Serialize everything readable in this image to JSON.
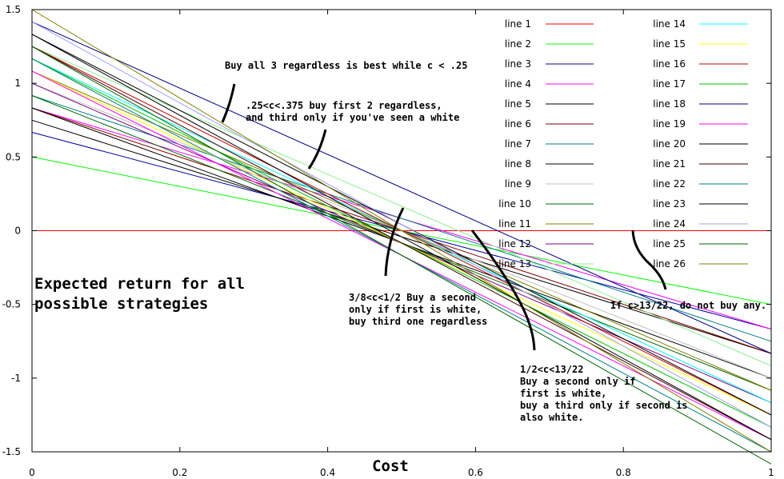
{
  "chart_data": {
    "type": "line",
    "title": "",
    "xlabel": "Cost",
    "ylabel": "",
    "xlim": [
      0,
      1
    ],
    "ylim": [
      -1.5,
      1.5
    ],
    "grid": false,
    "legend_placement": "top-right",
    "x_ticks": [
      "0",
      "0.2",
      "0.4",
      "0.6",
      "0.8",
      "1"
    ],
    "y_ticks": [
      "1.5",
      "1",
      "0.5",
      "0",
      "-0.5",
      "-1",
      "-1.5"
    ],
    "series": [
      {
        "name": "line 1",
        "color": "#ff0000",
        "x": [
          0,
          1
        ],
        "y": [
          0,
          0
        ]
      },
      {
        "name": "line 2",
        "color": "#00ff00",
        "x": [
          0,
          1
        ],
        "y": [
          0.5,
          -0.5
        ]
      },
      {
        "name": "line 3",
        "color": "#0000a0",
        "x": [
          0,
          1
        ],
        "y": [
          0.667,
          -0.667
        ]
      },
      {
        "name": "line 4",
        "color": "#ff00ff",
        "x": [
          0,
          1
        ],
        "y": [
          0.833,
          -0.667
        ]
      },
      {
        "name": "line 5",
        "color": "#000000",
        "x": [
          0,
          1
        ],
        "y": [
          0.75,
          -0.833
        ]
      },
      {
        "name": "line 6",
        "color": "#800000",
        "x": [
          0,
          1
        ],
        "y": [
          0.833,
          -0.833
        ]
      },
      {
        "name": "line 7",
        "color": "#008080",
        "x": [
          0,
          1
        ],
        "y": [
          0.917,
          -0.75
        ]
      },
      {
        "name": "line 8",
        "color": "#000000",
        "x": [
          0,
          1
        ],
        "y": [
          0.833,
          -1.0
        ]
      },
      {
        "name": "line 9",
        "color": "#c0c0c0",
        "x": [
          0,
          1
        ],
        "y": [
          1.0,
          -1.0
        ]
      },
      {
        "name": "line 10",
        "color": "#006400",
        "x": [
          0,
          1
        ],
        "y": [
          0.917,
          -1.083
        ]
      },
      {
        "name": "line 11",
        "color": "#808000",
        "x": [
          0,
          1
        ],
        "y": [
          1.083,
          -1.083
        ]
      },
      {
        "name": "line 12",
        "color": "#800080",
        "x": [
          0,
          1
        ],
        "y": [
          1.0,
          -1.167
        ]
      },
      {
        "name": "line 13",
        "color": "#90ee90",
        "x": [
          0,
          1
        ],
        "y": [
          1.25,
          -0.917
        ]
      },
      {
        "name": "line 14",
        "color": "#00ffff",
        "x": [
          0,
          1
        ],
        "y": [
          1.167,
          -1.167
        ]
      },
      {
        "name": "line 15",
        "color": "#ffff00",
        "x": [
          0,
          1
        ],
        "y": [
          1.083,
          -1.25
        ]
      },
      {
        "name": "line 16",
        "color": "#c00000",
        "x": [
          0,
          1
        ],
        "y": [
          1.25,
          -1.25
        ]
      },
      {
        "name": "line 17",
        "color": "#00c000",
        "x": [
          0,
          1
        ],
        "y": [
          1.167,
          -1.333
        ]
      },
      {
        "name": "line 18",
        "color": "#000080",
        "x": [
          0,
          1
        ],
        "y": [
          1.417,
          -0.833
        ]
      },
      {
        "name": "line 19",
        "color": "#ff00ff",
        "x": [
          0,
          1
        ],
        "y": [
          1.083,
          -1.417
        ]
      },
      {
        "name": "line 20",
        "color": "#000000",
        "x": [
          0,
          1
        ],
        "y": [
          1.333,
          -1.25
        ]
      },
      {
        "name": "line 21",
        "color": "#400000",
        "x": [
          0,
          1
        ],
        "y": [
          1.25,
          -1.417
        ]
      },
      {
        "name": "line 22",
        "color": "#008080",
        "x": [
          0,
          1
        ],
        "y": [
          1.167,
          -1.5
        ]
      },
      {
        "name": "line 23",
        "color": "#000000",
        "x": [
          0,
          1
        ],
        "y": [
          1.333,
          -1.417
        ]
      },
      {
        "name": "line 24",
        "color": "#a0a0ff",
        "x": [
          0,
          1
        ],
        "y": [
          1.417,
          -1.333
        ]
      },
      {
        "name": "line 25",
        "color": "#006400",
        "x": [
          0,
          1
        ],
        "y": [
          1.25,
          -1.583
        ]
      },
      {
        "name": "line 26",
        "color": "#808000",
        "x": [
          0,
          1
        ],
        "y": [
          1.5,
          -1.5
        ]
      }
    ],
    "annotations": [
      {
        "lines": [
          "Buy all 3 regardless is best while c < .25"
        ]
      },
      {
        "lines": [
          ".25<c<.375 buy first 2 regardless,",
          "and third only if you've seen a white"
        ]
      },
      {
        "lines": [
          "3/8<c<1/2 Buy a second",
          "only if first is white,",
          "buy third one regardless"
        ]
      },
      {
        "lines": [
          "1/2<c<13/22",
          "Buy a second only if",
          "first is white,",
          "buy a third only if second is",
          "also white."
        ]
      },
      {
        "lines": [
          "If c>13/22, do not buy any."
        ]
      },
      {
        "lines": [
          "Expected return for all",
          "possible strategies"
        ],
        "big": true
      }
    ]
  }
}
